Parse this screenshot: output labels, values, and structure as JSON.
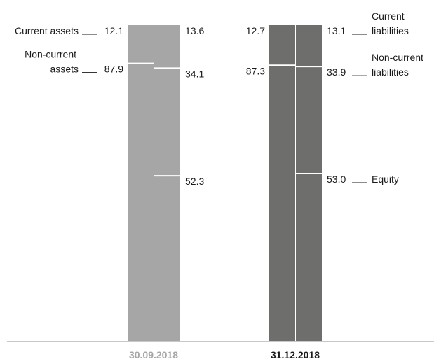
{
  "chart_data": {
    "type": "bar",
    "stacked": true,
    "ylim": [
      0,
      100
    ],
    "colors": {
      "period_1": "#a6a6a6",
      "period_2": "#6e6e6d",
      "baseline": "#c8c8c8",
      "separator": "#ffffff",
      "date_1": "#a6a6a6",
      "date_2": "#1a1a1a"
    },
    "categories": [
      "30.09.2018",
      "31.12.2018"
    ],
    "periods": [
      {
        "date": "30.09.2018",
        "assets": [
          {
            "name": "Non-current assets",
            "value": 87.9,
            "label": "87.9"
          },
          {
            "name": "Current assets",
            "value": 12.1,
            "label": "12.1"
          }
        ],
        "liabilities_equity": [
          {
            "name": "Equity",
            "value": 52.3,
            "label": "52.3"
          },
          {
            "name": "Non-current liabilities",
            "value": 34.1,
            "label": "34.1"
          },
          {
            "name": "Current liabilities",
            "value": 13.6,
            "label": "13.6"
          }
        ]
      },
      {
        "date": "31.12.2018",
        "assets": [
          {
            "name": "Non-current assets",
            "value": 87.3,
            "label": "87.3"
          },
          {
            "name": "Current assets",
            "value": 12.7,
            "label": "12.7"
          }
        ],
        "liabilities_equity": [
          {
            "name": "Equity",
            "value": 53.0,
            "label": "53.0"
          },
          {
            "name": "Non-current liabilities",
            "value": 33.9,
            "label": "33.9"
          },
          {
            "name": "Current liabilities",
            "value": 13.1,
            "label": "13.1"
          }
        ]
      }
    ],
    "left_labels": {
      "current_assets": [
        "Current assets"
      ],
      "non_current_assets": [
        "Non-current",
        "assets"
      ]
    },
    "right_labels": {
      "current_liabilities": [
        "Current",
        "liabilities"
      ],
      "non_current_liabilities": [
        "Non-current",
        "liabilities"
      ],
      "equity": [
        "Equity"
      ]
    }
  }
}
